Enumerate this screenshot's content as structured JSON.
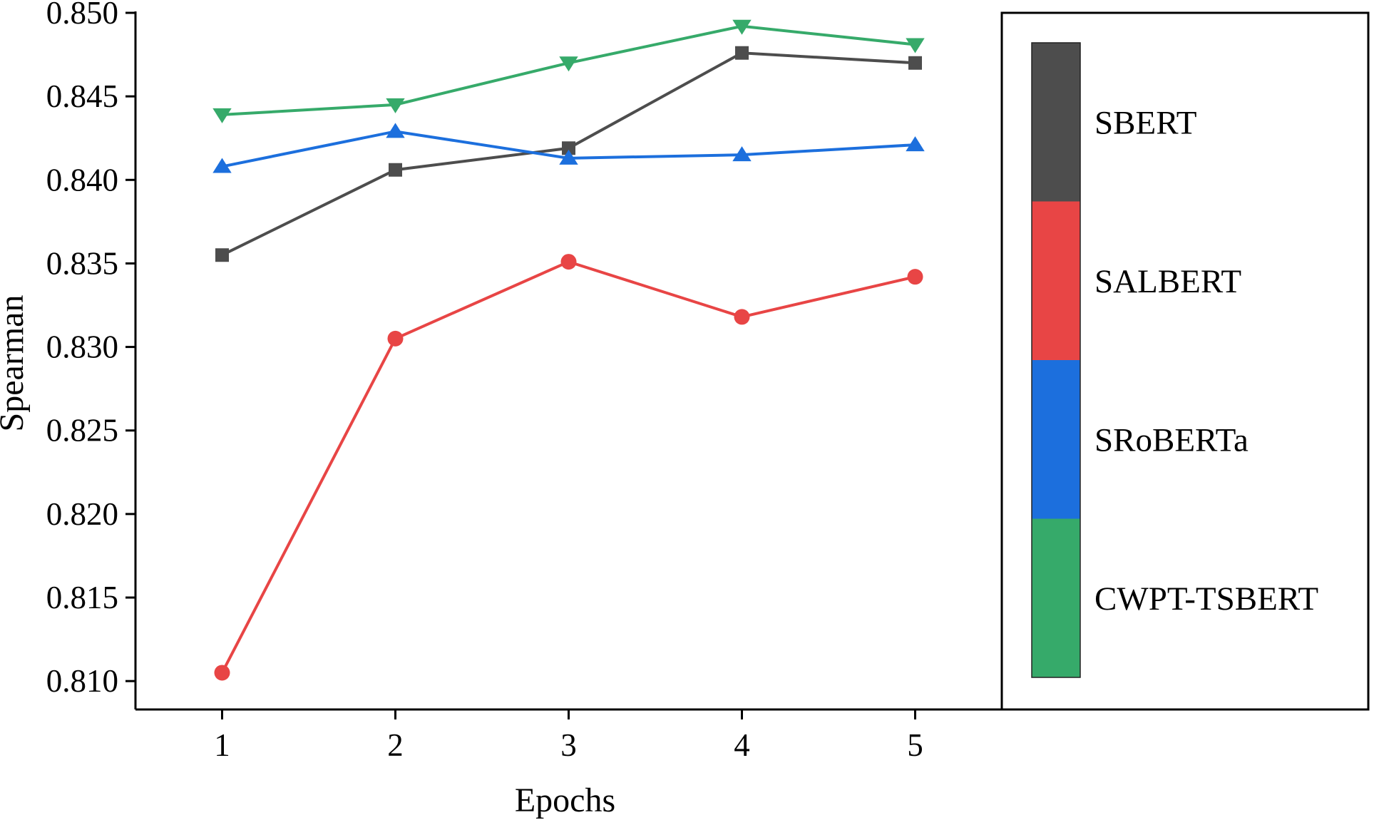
{
  "chart_data": {
    "type": "line",
    "title": "",
    "xlabel": "Epochs",
    "ylabel": "Spearman",
    "x": [
      1,
      2,
      3,
      4,
      5
    ],
    "x_tick_labels": [
      "1",
      "2",
      "3",
      "4",
      "5"
    ],
    "y_tick_labels": [
      "0.810",
      "0.815",
      "0.820",
      "0.825",
      "0.830",
      "0.835",
      "0.840",
      "0.845",
      "0.850"
    ],
    "ylim": [
      0.81,
      0.85
    ],
    "xlim": [
      0.5,
      5.5
    ],
    "grid": false,
    "legend": {
      "placement": "right",
      "style": "color-bar"
    },
    "series": [
      {
        "name": "SBERT",
        "color": "#4d4d4d",
        "marker": "square",
        "values": [
          0.8355,
          0.8406,
          0.8419,
          0.8476,
          0.847
        ]
      },
      {
        "name": "SALBERT",
        "color": "#e84545",
        "marker": "circle",
        "values": [
          0.8105,
          0.8305,
          0.8351,
          0.8318,
          0.8342
        ]
      },
      {
        "name": "SRoBERTa",
        "color": "#1c6fdd",
        "marker": "triangle-up",
        "values": [
          0.8408,
          0.8429,
          0.8413,
          0.8415,
          0.8421
        ]
      },
      {
        "name": "CWPT-TSBERT",
        "color": "#36aa6a",
        "marker": "triangle-down",
        "values": [
          0.8439,
          0.8445,
          0.847,
          0.8492,
          0.8481
        ]
      }
    ]
  }
}
